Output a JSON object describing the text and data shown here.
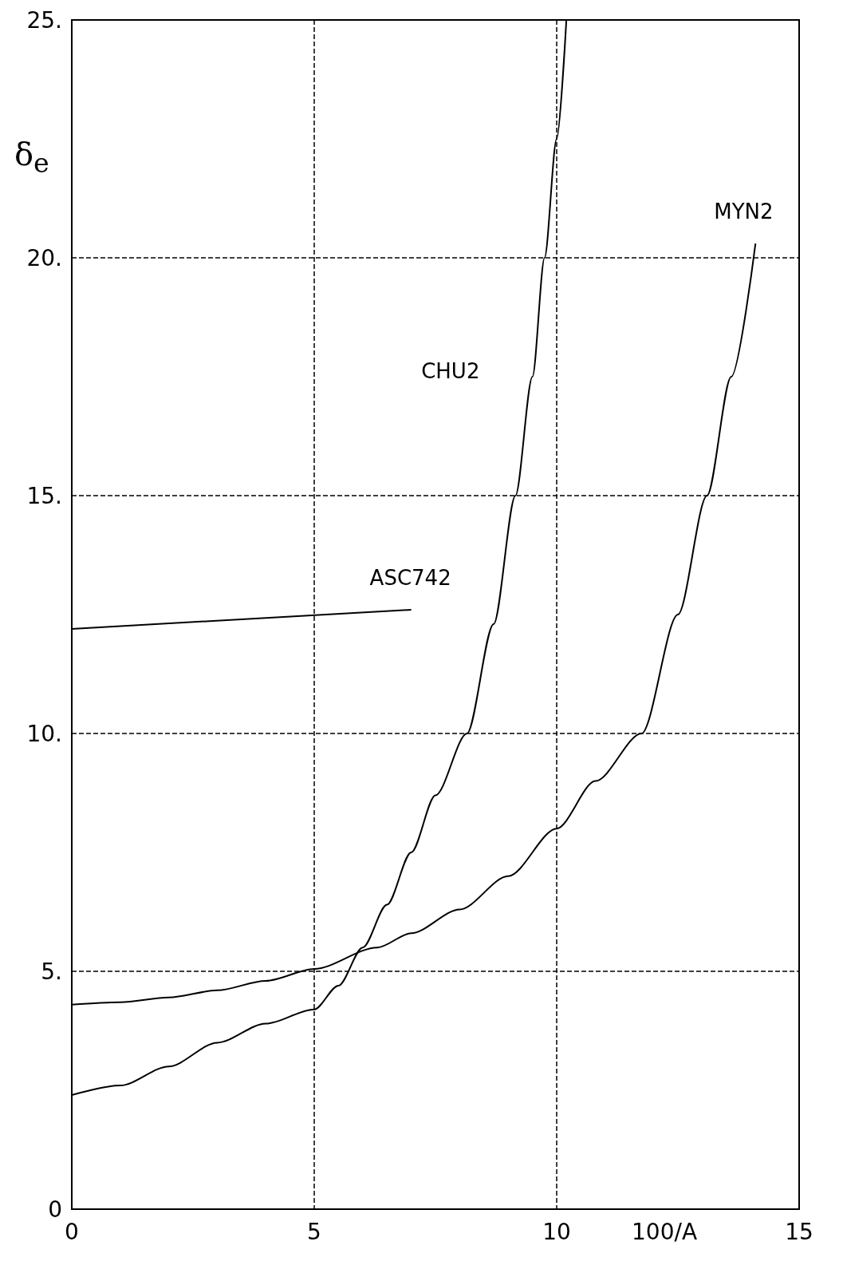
{
  "chart_data": {
    "type": "line",
    "xlabel": "100/A",
    "ylabel": "δ$_{e}$",
    "xlim": [
      0,
      15
    ],
    "xticks": [
      0,
      5,
      10,
      15
    ],
    "ylim": [
      0,
      25
    ],
    "yticks": [
      0,
      {
        "value": 5,
        "label": "5."
      },
      {
        "value": 10,
        "label": "10."
      },
      {
        "value": 15,
        "label": "15."
      },
      {
        "value": 20,
        "label": "20."
      },
      {
        "value": 25,
        "label": "25."
      }
    ],
    "grid": true,
    "legend": false,
    "marker": "none",
    "line_style": "solid",
    "series": [
      {
        "name": "CHU2",
        "color": "#000000",
        "x": [
          0,
          1,
          2,
          3,
          4,
          5,
          5.5,
          6,
          6.5,
          7,
          7.5,
          8.15,
          8.7,
          9.15,
          9.5,
          9.75,
          10,
          10.2
        ],
        "values": [
          2.4,
          2.6,
          3.0,
          3.5,
          3.9,
          4.2,
          4.7,
          5.5,
          6.4,
          7.5,
          8.7,
          10,
          12.3,
          15,
          17.5,
          20,
          22.5,
          25
        ]
      },
      {
        "name": "MYN2",
        "color": "#000000",
        "x": [
          0,
          1,
          2,
          3,
          4,
          5,
          6.3,
          7,
          8,
          9,
          10,
          10.8,
          11.75,
          12.5,
          13.1,
          13.6,
          14.1
        ],
        "values": [
          4.3,
          4.35,
          4.45,
          4.6,
          4.8,
          5.05,
          5.5,
          5.8,
          6.3,
          7.0,
          8.0,
          9.0,
          10,
          12.5,
          15,
          17.5,
          20.3
        ]
      },
      {
        "name": "ASC742",
        "color": "#000000",
        "x": [
          0,
          7
        ],
        "values": [
          12.2,
          12.6
        ]
      }
    ]
  }
}
